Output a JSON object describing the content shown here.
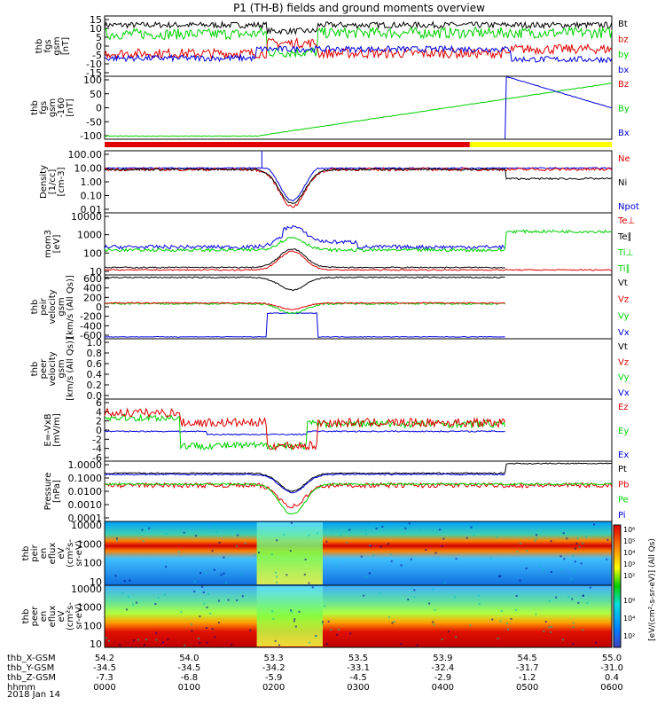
{
  "title": "P1 (TH-B) fields and ground moments overview",
  "colors": {
    "black": "#000000",
    "red": "#e00000",
    "green": "#00d000",
    "blue": "#0000e0",
    "yellow": "#ffff00"
  },
  "chart_data": [
    {
      "type": "line",
      "panel": "fgs",
      "ylabel": [
        "thb",
        "fgs",
        "gsm",
        "[nT]"
      ],
      "ylim": [
        -15,
        15
      ],
      "yticks": [
        "15",
        "10",
        "5",
        "0",
        "-5",
        "-10",
        "-15"
      ],
      "series": [
        {
          "name": "Bt",
          "color": "black"
        },
        {
          "name": "bz",
          "color": "red"
        },
        {
          "name": "by",
          "color": "green"
        },
        {
          "name": "bx",
          "color": "blue"
        }
      ]
    },
    {
      "type": "line",
      "panel": "fgs-16",
      "ylabel": [
        "thb",
        "fgs",
        "gsm",
        "-160",
        "[nT]"
      ],
      "ylim": [
        -150,
        100
      ],
      "yticks": [
        "100",
        "50",
        "0",
        "-50",
        "-100"
      ],
      "series": [
        {
          "name": "Bz",
          "color": "red"
        },
        {
          "name": "By",
          "color": "green"
        },
        {
          "name": "Bx",
          "color": "blue"
        }
      ]
    },
    {
      "type": "bar",
      "panel": "mode-bar",
      "segments": [
        {
          "from": 0,
          "to": 0.72,
          "color": "red"
        },
        {
          "from": 0.72,
          "to": 1,
          "color": "yellow"
        }
      ]
    },
    {
      "type": "line",
      "panel": "density",
      "ylabel": [
        "Density",
        "[1/cc]",
        "[cm-3]"
      ],
      "scale": "log",
      "yticks": [
        "100.00",
        "10.00",
        "1.00",
        "0.10",
        "0.01"
      ],
      "series": [
        {
          "name": "Ne",
          "color": "red"
        },
        {
          "name": "Ni",
          "color": "black"
        },
        {
          "name": "Npot",
          "color": "blue"
        }
      ]
    },
    {
      "type": "line",
      "panel": "temperature",
      "ylabel": [
        "mom3",
        "[eV]"
      ],
      "scale": "log",
      "yticks": [
        "10000",
        "1000",
        "100",
        "10"
      ],
      "series": [
        {
          "name": "Te⊥",
          "color": "red"
        },
        {
          "name": "Te∥",
          "color": "black"
        },
        {
          "name": "Ti⊥",
          "color": "green"
        },
        {
          "name": "Ti∥",
          "color": "green"
        }
      ]
    },
    {
      "type": "line",
      "panel": "peir-velocity",
      "ylabel": [
        "thb",
        "peir",
        "velocity",
        "gsm",
        "[km/s (All Qs)]"
      ],
      "ylim": [
        -600,
        600
      ],
      "yticks": [
        "600",
        "400",
        "200",
        "0",
        "-200",
        "-400",
        "-600"
      ],
      "series": [
        {
          "name": "Vt",
          "color": "black"
        },
        {
          "name": "Vz",
          "color": "red"
        },
        {
          "name": "Vy",
          "color": "green"
        },
        {
          "name": "Vx",
          "color": "blue"
        }
      ]
    },
    {
      "type": "line",
      "panel": "peer-velocity",
      "ylabel": [
        "thb",
        "peer",
        "velocity",
        "gsm",
        "[km/s (All Qs)]"
      ],
      "ylim": [
        -1,
        1
      ],
      "yticks": [
        "1.0",
        "0.8",
        "0.6",
        "0.4",
        "0.2",
        "0.0"
      ],
      "series": [
        {
          "name": "Vt",
          "color": "black"
        },
        {
          "name": "Vz",
          "color": "red"
        },
        {
          "name": "Vy",
          "color": "green"
        },
        {
          "name": "Vx",
          "color": "blue"
        }
      ]
    },
    {
      "type": "line",
      "panel": "efield",
      "ylabel": [
        "E=-VxB",
        "[mV/m]"
      ],
      "ylim": [
        -6,
        6
      ],
      "yticks": [
        "6",
        "4",
        "2",
        "0",
        "-2",
        "-4",
        "-6"
      ],
      "series": [
        {
          "name": "Ez",
          "color": "red"
        },
        {
          "name": "Ey",
          "color": "green"
        },
        {
          "name": "Ex",
          "color": "blue"
        }
      ]
    },
    {
      "type": "line",
      "panel": "pressure",
      "ylabel": [
        "Pressure",
        "[nPa]"
      ],
      "scale": "log",
      "yticks": [
        "1.0000",
        "0.1000",
        "0.0100",
        "0.0010",
        "0.0001"
      ],
      "series": [
        {
          "name": "Pt",
          "color": "black"
        },
        {
          "name": "Pb",
          "color": "red"
        },
        {
          "name": "Pe",
          "color": "green"
        },
        {
          "name": "Pi",
          "color": "blue"
        }
      ]
    },
    {
      "type": "heatmap",
      "panel": "peir-spectrogram",
      "ylabel": [
        "thb",
        "peir",
        "en",
        "eflux",
        "eV",
        "(cm²s-",
        "sr-eV)"
      ],
      "scale": "log",
      "yticks": [
        "10000",
        "1000",
        "100",
        "10"
      ]
    },
    {
      "type": "heatmap",
      "panel": "peer-spectrogram",
      "ylabel": [
        "thb",
        "peer",
        "en",
        "eflux",
        "eV",
        "(cm²s-",
        "sr-eV)"
      ],
      "scale": "log",
      "yticks": [
        "10000",
        "1000",
        "100",
        "10"
      ]
    }
  ],
  "colorbar": {
    "label": "[eV/(cm²-s-sr-eV)] (All Qs)",
    "ticks1": [
      "10⁶",
      "10⁵",
      "10⁴",
      "10³",
      "10²"
    ],
    "ticks2": [
      "10⁶",
      "10⁴",
      "10²"
    ]
  },
  "xaxis": {
    "rows": [
      {
        "label": "thb_X-GSM",
        "values": [
          "54.2",
          "54.0",
          "53.3",
          "53.5",
          "53.9",
          "54.5",
          "55.0"
        ]
      },
      {
        "label": "thb_Y-GSM",
        "values": [
          "-34.5",
          "-34.5",
          "-34.2",
          "-33.1",
          "-32.4",
          "-31.7",
          "-31.0"
        ]
      },
      {
        "label": "thb_Z-GSM",
        "values": [
          "-7.3",
          "-6.8",
          "-5.9",
          "-4.5",
          "-2.9",
          "-1.2",
          "0.4"
        ]
      },
      {
        "label": "hhmm",
        "values": [
          "0000",
          "0100",
          "0200",
          "0300",
          "0400",
          "0500",
          "0600"
        ]
      }
    ],
    "date": "2018 Jan 14"
  }
}
